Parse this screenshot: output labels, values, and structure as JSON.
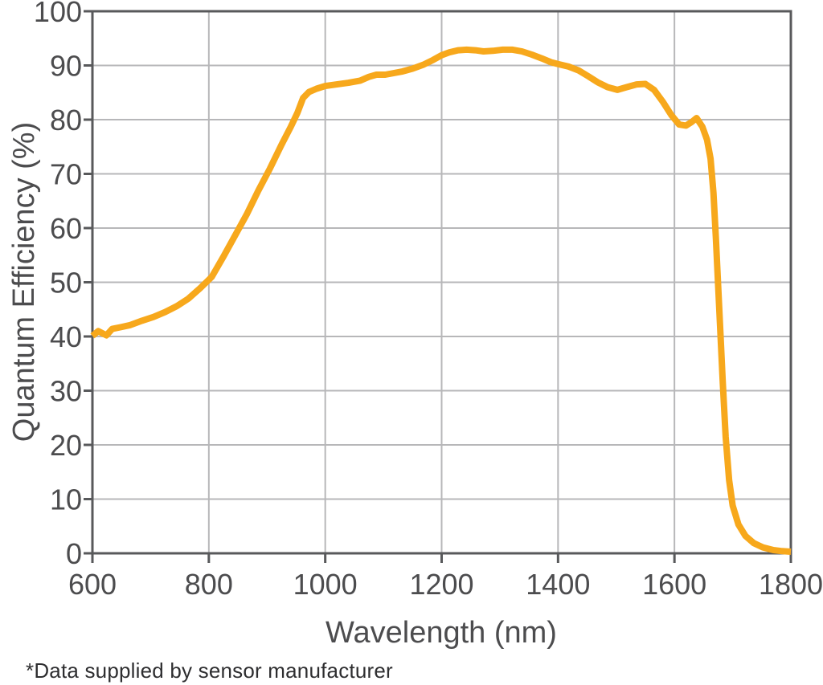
{
  "footnote": "*Data supplied by sensor manufacturer",
  "colors": {
    "curve": "#F7A81C",
    "frame": "#58595B",
    "grid": "#B7B7B9",
    "axis_text": "#4C4C4E",
    "background": "#FFFFFF"
  },
  "chart_data": {
    "type": "line",
    "title": "",
    "xlabel": "Wavelength (nm)",
    "ylabel": "Quantum Efficiency (%)",
    "xlim": [
      600,
      1800
    ],
    "ylim": [
      0,
      100
    ],
    "x_ticks": [
      600,
      800,
      1000,
      1200,
      1400,
      1600,
      1800
    ],
    "y_ticks": [
      0,
      10,
      20,
      30,
      40,
      50,
      60,
      70,
      80,
      90,
      100
    ],
    "grid": true,
    "legend_position": "none",
    "series": [
      {
        "name": "Quantum Efficiency",
        "color": "#F7A81C",
        "points": [
          [
            600,
            40.1
          ],
          [
            610,
            41.0
          ],
          [
            624,
            40.2
          ],
          [
            634,
            41.4
          ],
          [
            648,
            41.7
          ],
          [
            665,
            42.1
          ],
          [
            685,
            42.9
          ],
          [
            705,
            43.6
          ],
          [
            725,
            44.5
          ],
          [
            745,
            45.6
          ],
          [
            765,
            47.0
          ],
          [
            785,
            48.9
          ],
          [
            805,
            51.0
          ],
          [
            825,
            54.7
          ],
          [
            845,
            58.6
          ],
          [
            865,
            62.5
          ],
          [
            885,
            66.9
          ],
          [
            905,
            71.0
          ],
          [
            925,
            75.4
          ],
          [
            940,
            78.5
          ],
          [
            952,
            81.2
          ],
          [
            962,
            84.0
          ],
          [
            972,
            85.1
          ],
          [
            985,
            85.7
          ],
          [
            1000,
            86.2
          ],
          [
            1020,
            86.5
          ],
          [
            1040,
            86.8
          ],
          [
            1060,
            87.2
          ],
          [
            1075,
            87.9
          ],
          [
            1088,
            88.3
          ],
          [
            1103,
            88.3
          ],
          [
            1118,
            88.6
          ],
          [
            1133,
            88.9
          ],
          [
            1150,
            89.4
          ],
          [
            1168,
            90.1
          ],
          [
            1185,
            91.0
          ],
          [
            1200,
            91.9
          ],
          [
            1213,
            92.4
          ],
          [
            1228,
            92.8
          ],
          [
            1243,
            92.9
          ],
          [
            1258,
            92.8
          ],
          [
            1272,
            92.6
          ],
          [
            1288,
            92.7
          ],
          [
            1305,
            92.9
          ],
          [
            1322,
            92.9
          ],
          [
            1338,
            92.6
          ],
          [
            1355,
            92.0
          ],
          [
            1372,
            91.3
          ],
          [
            1388,
            90.6
          ],
          [
            1402,
            90.2
          ],
          [
            1418,
            89.8
          ],
          [
            1435,
            89.1
          ],
          [
            1452,
            88.0
          ],
          [
            1468,
            86.9
          ],
          [
            1485,
            86.0
          ],
          [
            1502,
            85.5
          ],
          [
            1518,
            86.0
          ],
          [
            1535,
            86.5
          ],
          [
            1550,
            86.6
          ],
          [
            1565,
            85.5
          ],
          [
            1580,
            83.3
          ],
          [
            1595,
            80.8
          ],
          [
            1608,
            79.1
          ],
          [
            1620,
            78.9
          ],
          [
            1630,
            79.6
          ],
          [
            1638,
            80.3
          ],
          [
            1648,
            78.7
          ],
          [
            1656,
            76.3
          ],
          [
            1662,
            72.8
          ],
          [
            1667,
            66.5
          ],
          [
            1671,
            58.5
          ],
          [
            1675,
            49.5
          ],
          [
            1679,
            40.5
          ],
          [
            1683,
            31.5
          ],
          [
            1688,
            21.5
          ],
          [
            1694,
            13.5
          ],
          [
            1700,
            8.8
          ],
          [
            1710,
            5.3
          ],
          [
            1722,
            3.2
          ],
          [
            1736,
            1.9
          ],
          [
            1752,
            1.1
          ],
          [
            1770,
            0.6
          ],
          [
            1785,
            0.4
          ],
          [
            1800,
            0.3
          ]
        ]
      }
    ]
  }
}
